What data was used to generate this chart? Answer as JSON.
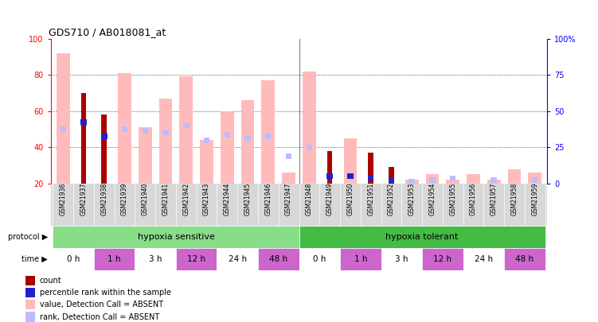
{
  "title": "GDS710 / AB018081_at",
  "samples": [
    "GSM21936",
    "GSM21937",
    "GSM21938",
    "GSM21939",
    "GSM21940",
    "GSM21941",
    "GSM21942",
    "GSM21943",
    "GSM21944",
    "GSM21945",
    "GSM21946",
    "GSM21947",
    "GSM21948",
    "GSM21949",
    "GSM21950",
    "GSM21951",
    "GSM21952",
    "GSM21953",
    "GSM21954",
    "GSM21955",
    "GSM21956",
    "GSM21957",
    "GSM21958",
    "GSM21959"
  ],
  "value_absent": [
    92,
    0,
    0,
    81,
    51,
    67,
    79,
    44,
    60,
    66,
    77,
    26,
    82,
    0,
    45,
    0,
    0,
    0,
    0,
    0,
    0,
    0,
    0,
    0
  ],
  "rank_absent": [
    50,
    53,
    47,
    50,
    49,
    48,
    52,
    44,
    47,
    45,
    46,
    0,
    40,
    0,
    0,
    0,
    0,
    0,
    0,
    0,
    0,
    0,
    0,
    0
  ],
  "count": [
    0,
    70,
    58,
    0,
    0,
    0,
    0,
    0,
    0,
    0,
    0,
    0,
    0,
    38,
    0,
    37,
    29,
    0,
    0,
    0,
    0,
    0,
    0,
    0
  ],
  "pct_rank": [
    0,
    54,
    46,
    0,
    0,
    0,
    0,
    0,
    0,
    0,
    0,
    0,
    0,
    24,
    24,
    23,
    22,
    0,
    0,
    0,
    0,
    0,
    0,
    0
  ],
  "rank_absent2": [
    0,
    0,
    0,
    0,
    0,
    0,
    0,
    0,
    0,
    0,
    0,
    35,
    0,
    0,
    0,
    0,
    0,
    21,
    22,
    23,
    18,
    22,
    18,
    22
  ],
  "small_pink_bars": [
    0,
    0,
    0,
    0,
    0,
    0,
    0,
    0,
    0,
    0,
    0,
    0,
    0,
    0,
    0,
    0,
    0,
    22,
    25,
    22,
    25,
    22,
    28,
    26
  ],
  "ylim": [
    20,
    100
  ],
  "yticks_left": [
    20,
    40,
    60,
    80,
    100
  ],
  "ytick_labels_left": [
    "20",
    "40",
    "60",
    "80",
    "100"
  ],
  "ytick_labels_right": [
    "0",
    "25",
    "50",
    "75",
    "100%"
  ],
  "color_value_absent": "#ffbbbb",
  "color_rank_absent": "#bbbbff",
  "color_count": "#aa0000",
  "color_pct_rank": "#2222cc",
  "legend_items": [
    {
      "color": "#aa0000",
      "label": "count"
    },
    {
      "color": "#2222cc",
      "label": "percentile rank within the sample"
    },
    {
      "color": "#ffbbbb",
      "label": "value, Detection Call = ABSENT"
    },
    {
      "color": "#bbbbff",
      "label": "rank, Detection Call = ABSENT"
    }
  ],
  "protocol_groups": [
    {
      "label": "hypoxia sensitive",
      "start": 0,
      "end": 12,
      "color": "#88dd88"
    },
    {
      "label": "hypoxia tolerant",
      "start": 12,
      "end": 24,
      "color": "#44bb44"
    }
  ],
  "time_groups": [
    {
      "label": "0 h",
      "start": 0,
      "end": 2,
      "mag": false
    },
    {
      "label": "1 h",
      "start": 2,
      "end": 4,
      "mag": true
    },
    {
      "label": "3 h",
      "start": 4,
      "end": 6,
      "mag": false
    },
    {
      "label": "12 h",
      "start": 6,
      "end": 8,
      "mag": true
    },
    {
      "label": "24 h",
      "start": 8,
      "end": 10,
      "mag": false
    },
    {
      "label": "48 h",
      "start": 10,
      "end": 12,
      "mag": true
    },
    {
      "label": "0 h",
      "start": 12,
      "end": 14,
      "mag": false
    },
    {
      "label": "1 h",
      "start": 14,
      "end": 16,
      "mag": true
    },
    {
      "label": "3 h",
      "start": 16,
      "end": 18,
      "mag": false
    },
    {
      "label": "12 h",
      "start": 18,
      "end": 20,
      "mag": true
    },
    {
      "label": "24 h",
      "start": 20,
      "end": 22,
      "mag": false
    },
    {
      "label": "48 h",
      "start": 22,
      "end": 24,
      "mag": true
    }
  ]
}
